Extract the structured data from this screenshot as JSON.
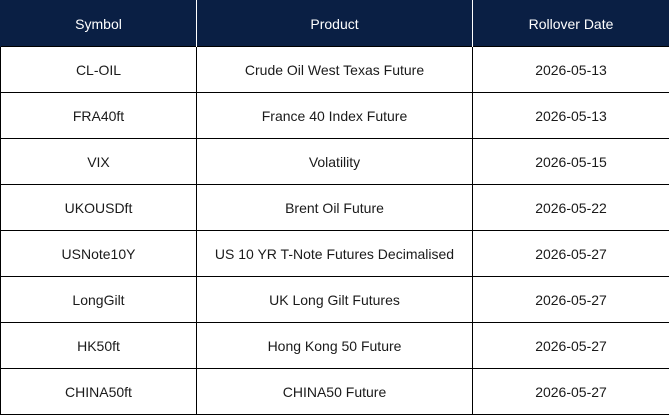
{
  "table": {
    "headers": {
      "symbol": "Symbol",
      "product": "Product",
      "rollover_date": "Rollover Date"
    },
    "rows": [
      {
        "symbol": "CL-OIL",
        "product": "Crude Oil West Texas Future",
        "rollover_date": "2026-05-13"
      },
      {
        "symbol": "FRA40ft",
        "product": "France 40 Index Future",
        "rollover_date": "2026-05-13"
      },
      {
        "symbol": "VIX",
        "product": "Volatility",
        "rollover_date": "2026-05-15"
      },
      {
        "symbol": "UKOUSDft",
        "product": "Brent Oil Future",
        "rollover_date": "2026-05-22"
      },
      {
        "symbol": "USNote10Y",
        "product": "US 10 YR T-Note Futures Decimalised",
        "rollover_date": "2026-05-27"
      },
      {
        "symbol": "LongGilt",
        "product": "UK Long Gilt Futures",
        "rollover_date": "2026-05-27"
      },
      {
        "symbol": "HK50ft",
        "product": "Hong Kong 50 Future",
        "rollover_date": "2026-05-27"
      },
      {
        "symbol": "CHINA50ft",
        "product": "CHINA50 Future",
        "rollover_date": "2026-05-27"
      }
    ]
  },
  "colors": {
    "header_background": "#0a1f44",
    "header_text": "#ffffff",
    "border": "#000000"
  }
}
